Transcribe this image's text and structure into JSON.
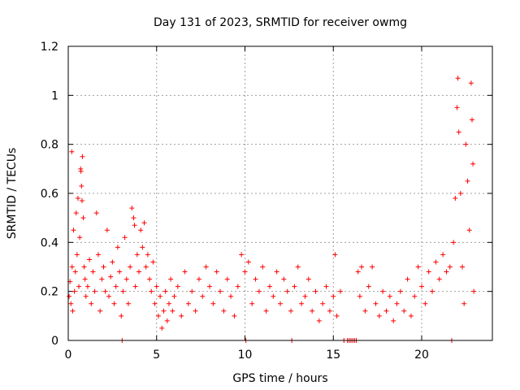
{
  "chart_data": {
    "type": "scatter",
    "title": "Day 131 of 2023, SRMTID for receiver owmg",
    "xlabel": "GPS time / hours",
    "ylabel": "SRMTID / TECUs",
    "xlim": [
      0,
      24
    ],
    "ylim": [
      0,
      1.2
    ],
    "xticks": [
      0,
      5,
      10,
      15,
      20
    ],
    "xtick_labels": [
      "0",
      "5",
      "10",
      "15",
      "20"
    ],
    "yticks": [
      0,
      0.2,
      0.4,
      0.6,
      0.8,
      1.0,
      1.2
    ],
    "ytick_labels": [
      "0",
      "0.2",
      "0.4",
      "0.6",
      "0.8",
      "1",
      "1.2"
    ],
    "grid": true,
    "marker": "+",
    "color": "#ff0000",
    "series": [
      {
        "name": "SRMTID owmg",
        "points": [
          [
            0.05,
            0.18
          ],
          [
            0.1,
            0.24
          ],
          [
            0.15,
            0.15
          ],
          [
            0.2,
            0.77
          ],
          [
            0.22,
            0.3
          ],
          [
            0.25,
            0.12
          ],
          [
            0.3,
            0.45
          ],
          [
            0.35,
            0.2
          ],
          [
            0.4,
            0.28
          ],
          [
            0.45,
            0.52
          ],
          [
            0.5,
            0.35
          ],
          [
            0.55,
            0.58
          ],
          [
            0.6,
            0.22
          ],
          [
            0.65,
            0.42
          ],
          [
            0.7,
            0.7
          ],
          [
            0.72,
            0.69
          ],
          [
            0.75,
            0.63
          ],
          [
            0.78,
            0.57
          ],
          [
            0.8,
            0.75
          ],
          [
            0.85,
            0.5
          ],
          [
            0.9,
            0.3
          ],
          [
            0.95,
            0.25
          ],
          [
            1.0,
            0.18
          ],
          [
            1.1,
            0.22
          ],
          [
            1.2,
            0.33
          ],
          [
            1.3,
            0.15
          ],
          [
            1.4,
            0.28
          ],
          [
            1.5,
            0.2
          ],
          [
            1.6,
            0.52
          ],
          [
            1.7,
            0.35
          ],
          [
            1.8,
            0.12
          ],
          [
            1.9,
            0.25
          ],
          [
            2.0,
            0.3
          ],
          [
            2.1,
            0.2
          ],
          [
            2.2,
            0.45
          ],
          [
            2.3,
            0.18
          ],
          [
            2.4,
            0.26
          ],
          [
            2.5,
            0.32
          ],
          [
            2.6,
            0.15
          ],
          [
            2.7,
            0.22
          ],
          [
            2.8,
            0.38
          ],
          [
            2.9,
            0.28
          ],
          [
            3.0,
            0.1
          ],
          [
            3.05,
            0.0
          ],
          [
            3.1,
            0.2
          ],
          [
            3.2,
            0.42
          ],
          [
            3.3,
            0.25
          ],
          [
            3.4,
            0.15
          ],
          [
            3.5,
            0.3
          ],
          [
            3.6,
            0.54
          ],
          [
            3.7,
            0.5
          ],
          [
            3.75,
            0.47
          ],
          [
            3.8,
            0.22
          ],
          [
            3.9,
            0.35
          ],
          [
            4.0,
            0.28
          ],
          [
            4.1,
            0.45
          ],
          [
            4.2,
            0.38
          ],
          [
            4.3,
            0.48
          ],
          [
            4.4,
            0.3
          ],
          [
            4.5,
            0.35
          ],
          [
            4.6,
            0.25
          ],
          [
            4.7,
            0.2
          ],
          [
            4.8,
            0.32
          ],
          [
            4.9,
            0.15
          ],
          [
            5.0,
            0.22
          ],
          [
            5.1,
            0.1
          ],
          [
            5.2,
            0.18
          ],
          [
            5.3,
            0.05
          ],
          [
            5.4,
            0.12
          ],
          [
            5.5,
            0.2
          ],
          [
            5.6,
            0.08
          ],
          [
            5.7,
            0.15
          ],
          [
            5.8,
            0.25
          ],
          [
            5.9,
            0.12
          ],
          [
            6.0,
            0.18
          ],
          [
            6.2,
            0.22
          ],
          [
            6.4,
            0.1
          ],
          [
            6.6,
            0.28
          ],
          [
            6.8,
            0.15
          ],
          [
            7.0,
            0.2
          ],
          [
            7.2,
            0.12
          ],
          [
            7.4,
            0.25
          ],
          [
            7.6,
            0.18
          ],
          [
            7.8,
            0.3
          ],
          [
            8.0,
            0.22
          ],
          [
            8.2,
            0.15
          ],
          [
            8.4,
            0.28
          ],
          [
            8.6,
            0.2
          ],
          [
            8.8,
            0.12
          ],
          [
            9.0,
            0.25
          ],
          [
            9.2,
            0.18
          ],
          [
            9.4,
            0.1
          ],
          [
            9.6,
            0.22
          ],
          [
            9.8,
            0.35
          ],
          [
            10.0,
            0.28
          ],
          [
            10.05,
            0.0
          ],
          [
            10.2,
            0.32
          ],
          [
            10.4,
            0.15
          ],
          [
            10.6,
            0.25
          ],
          [
            10.8,
            0.2
          ],
          [
            11.0,
            0.3
          ],
          [
            11.2,
            0.12
          ],
          [
            11.4,
            0.22
          ],
          [
            11.6,
            0.18
          ],
          [
            11.8,
            0.28
          ],
          [
            12.0,
            0.15
          ],
          [
            12.2,
            0.25
          ],
          [
            12.4,
            0.2
          ],
          [
            12.6,
            0.12
          ],
          [
            12.65,
            0.0
          ],
          [
            12.8,
            0.22
          ],
          [
            13.0,
            0.3
          ],
          [
            13.2,
            0.15
          ],
          [
            13.4,
            0.18
          ],
          [
            13.6,
            0.25
          ],
          [
            13.8,
            0.12
          ],
          [
            14.0,
            0.2
          ],
          [
            14.2,
            0.08
          ],
          [
            14.4,
            0.15
          ],
          [
            14.6,
            0.22
          ],
          [
            14.8,
            0.12
          ],
          [
            15.0,
            0.18
          ],
          [
            15.1,
            0.35
          ],
          [
            15.2,
            0.1
          ],
          [
            15.4,
            0.2
          ],
          [
            15.6,
            0.0
          ],
          [
            15.8,
            0.0
          ],
          [
            15.9,
            0.0
          ],
          [
            16.0,
            0.0
          ],
          [
            16.1,
            0.0
          ],
          [
            16.2,
            0.0
          ],
          [
            16.3,
            0.0
          ],
          [
            16.4,
            0.28
          ],
          [
            16.5,
            0.18
          ],
          [
            16.6,
            0.3
          ],
          [
            16.8,
            0.12
          ],
          [
            17.0,
            0.22
          ],
          [
            17.2,
            0.3
          ],
          [
            17.4,
            0.15
          ],
          [
            17.6,
            0.1
          ],
          [
            17.8,
            0.2
          ],
          [
            18.0,
            0.12
          ],
          [
            18.2,
            0.18
          ],
          [
            18.4,
            0.08
          ],
          [
            18.6,
            0.15
          ],
          [
            18.8,
            0.2
          ],
          [
            19.0,
            0.12
          ],
          [
            19.2,
            0.25
          ],
          [
            19.4,
            0.1
          ],
          [
            19.6,
            0.18
          ],
          [
            19.8,
            0.3
          ],
          [
            20.0,
            0.22
          ],
          [
            20.2,
            0.15
          ],
          [
            20.4,
            0.28
          ],
          [
            20.6,
            0.2
          ],
          [
            20.8,
            0.32
          ],
          [
            21.0,
            0.25
          ],
          [
            21.2,
            0.35
          ],
          [
            21.4,
            0.28
          ],
          [
            21.6,
            0.3
          ],
          [
            21.7,
            0.0
          ],
          [
            21.8,
            0.4
          ],
          [
            21.9,
            0.58
          ],
          [
            22.0,
            0.95
          ],
          [
            22.05,
            1.07
          ],
          [
            22.1,
            0.85
          ],
          [
            22.2,
            0.6
          ],
          [
            22.3,
            0.3
          ],
          [
            22.4,
            0.15
          ],
          [
            22.5,
            0.8
          ],
          [
            22.6,
            0.65
          ],
          [
            22.7,
            0.45
          ],
          [
            22.8,
            1.05
          ],
          [
            22.85,
            0.9
          ],
          [
            22.9,
            0.72
          ],
          [
            22.95,
            0.2
          ]
        ]
      }
    ]
  }
}
